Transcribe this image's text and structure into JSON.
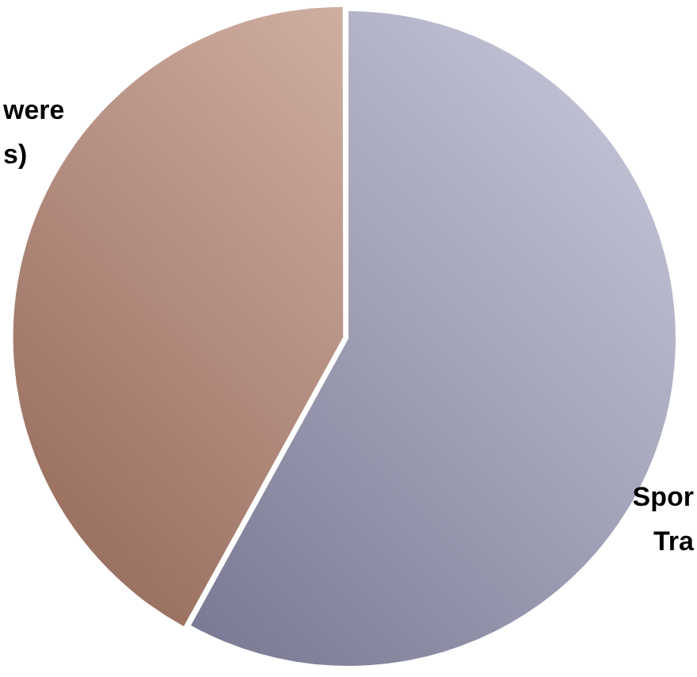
{
  "chart_data": {
    "type": "pie",
    "categories": [
      "Spor\nTra",
      "were\ns)"
    ],
    "values": [
      58,
      42
    ],
    "colors": [
      "#9494bc",
      "#c98a72"
    ],
    "legend": false
  }
}
